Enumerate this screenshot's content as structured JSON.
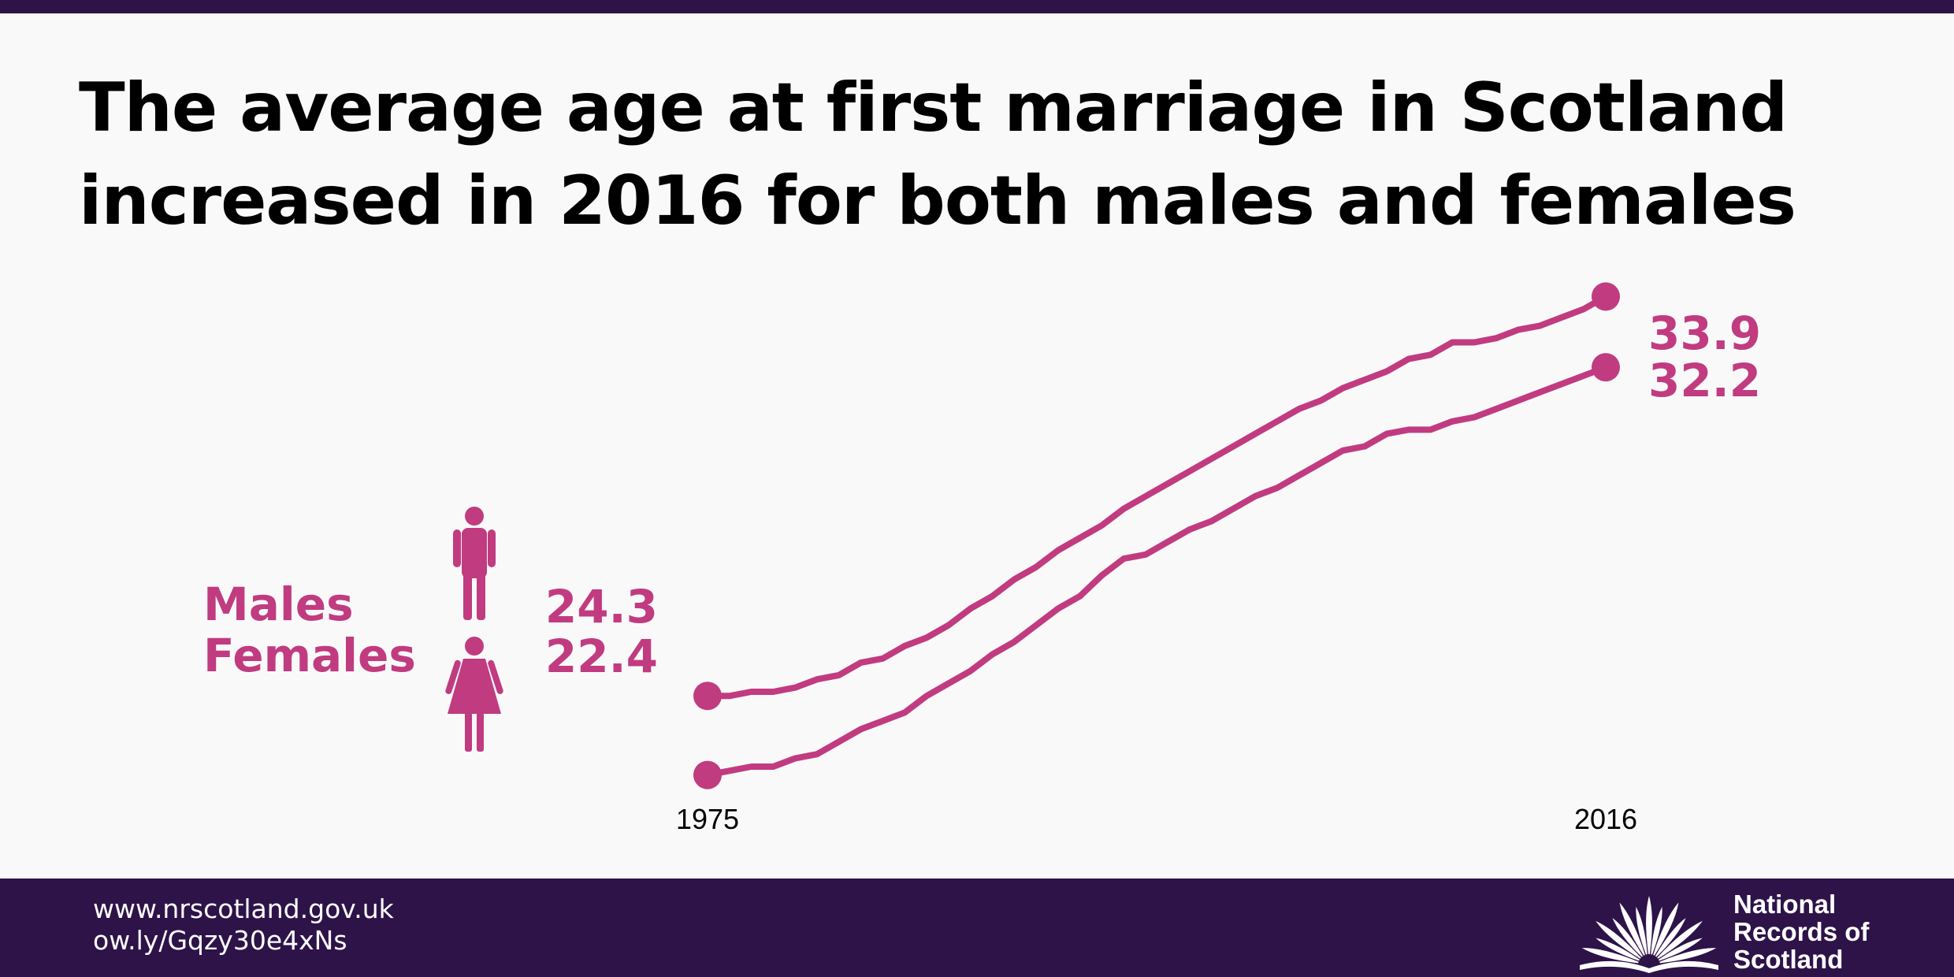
{
  "header": {
    "title": "The average age at first marriage in Scotland increased in 2016 for both males and females"
  },
  "legend": {
    "males_label": "Males",
    "females_label": "Females",
    "male_icon": "male-figure-icon",
    "female_icon": "female-figure-icon"
  },
  "colors": {
    "accent": "#c13b80",
    "footer_bg": "#2e1349",
    "background": "#f9f9f9"
  },
  "chart_data": {
    "type": "line",
    "title": "The average age at first marriage in Scotland increased in 2016 for both males and females",
    "x": [
      1975,
      1976,
      1977,
      1978,
      1979,
      1980,
      1981,
      1982,
      1983,
      1984,
      1985,
      1986,
      1987,
      1988,
      1989,
      1990,
      1991,
      1992,
      1993,
      1994,
      1995,
      1996,
      1997,
      1998,
      1999,
      2000,
      2001,
      2002,
      2003,
      2004,
      2005,
      2006,
      2007,
      2008,
      2009,
      2010,
      2011,
      2012,
      2013,
      2014,
      2015,
      2016
    ],
    "x_tick_labels": [
      "1975",
      "2016"
    ],
    "series": [
      {
        "name": "Males",
        "start_label": "24.3",
        "end_label": "33.9",
        "values": [
          24.3,
          24.3,
          24.4,
          24.4,
          24.5,
          24.7,
          24.8,
          25.1,
          25.2,
          25.5,
          25.7,
          26.0,
          26.4,
          26.7,
          27.1,
          27.4,
          27.8,
          28.1,
          28.4,
          28.8,
          29.1,
          29.4,
          29.7,
          30.0,
          30.3,
          30.6,
          30.9,
          31.2,
          31.4,
          31.7,
          31.9,
          32.1,
          32.4,
          32.5,
          32.8,
          32.8,
          32.9,
          33.1,
          33.2,
          33.4,
          33.6,
          33.9
        ]
      },
      {
        "name": "Females",
        "start_label": "22.4",
        "end_label": "32.2",
        "values": [
          22.4,
          22.5,
          22.6,
          22.6,
          22.8,
          22.9,
          23.2,
          23.5,
          23.7,
          23.9,
          24.3,
          24.6,
          24.9,
          25.3,
          25.6,
          26.0,
          26.4,
          26.7,
          27.2,
          27.6,
          27.7,
          28.0,
          28.3,
          28.5,
          28.8,
          29.1,
          29.3,
          29.6,
          29.9,
          30.2,
          30.3,
          30.6,
          30.7,
          30.7,
          30.9,
          31.0,
          31.2,
          31.4,
          31.6,
          31.8,
          32.0,
          32.2
        ]
      }
    ],
    "ylim": [
      21.9,
      34.4
    ],
    "grid": false,
    "xlabel": "",
    "ylabel": ""
  },
  "footer": {
    "website": "www.nrscotland.gov.uk",
    "short_link": "ow.ly/Gqzy30e4xNs",
    "brand_logo": "nrs-open-book-sunburst-logo",
    "brand_line1": "National",
    "brand_line2": "Records of",
    "brand_line3": "Scotland"
  }
}
